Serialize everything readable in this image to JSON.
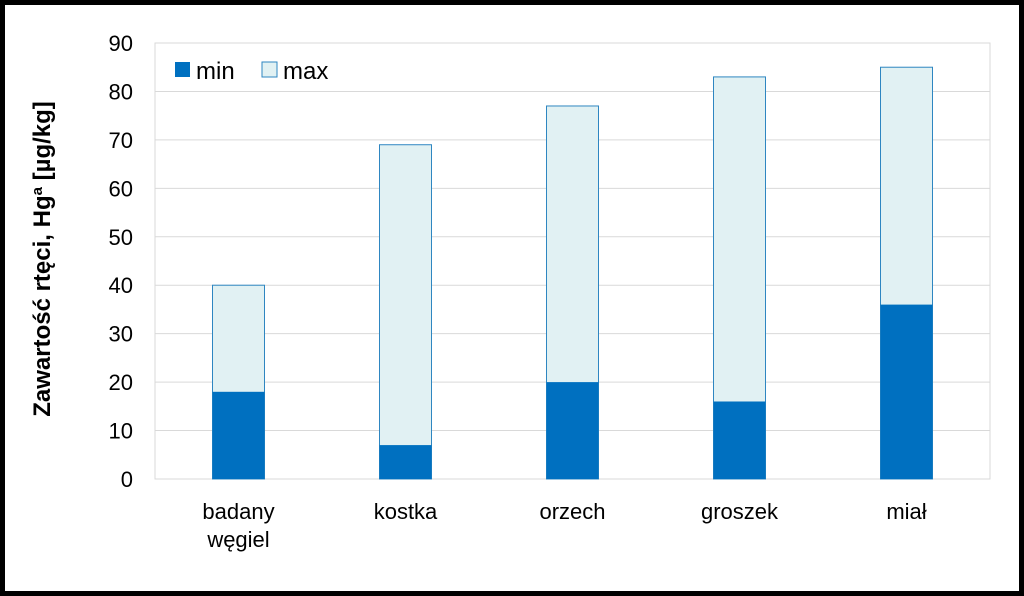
{
  "chart_data": {
    "type": "bar",
    "stacked": "overlay",
    "categories": [
      [
        "badany",
        "węgiel"
      ],
      [
        "kostka"
      ],
      [
        "orzech"
      ],
      [
        "groszek"
      ],
      [
        "miał"
      ]
    ],
    "series": [
      {
        "name": "min",
        "values": [
          18,
          7,
          20,
          16,
          36
        ],
        "color": "#0070C0"
      },
      {
        "name": "max",
        "values": [
          40,
          69,
          77,
          83,
          85
        ],
        "color": "#E1F1F3",
        "stroke": "#2E86C1"
      }
    ],
    "ylabel": "Zawartość rtęci, Hg",
    "ylabel_sup": "a",
    "ylabel_unit": " [µg/kg]",
    "ylim": [
      0,
      90
    ],
    "yticks": [
      0,
      10,
      20,
      30,
      40,
      50,
      60,
      70,
      80,
      90
    ],
    "grid": true,
    "legend_position": "top-left"
  }
}
